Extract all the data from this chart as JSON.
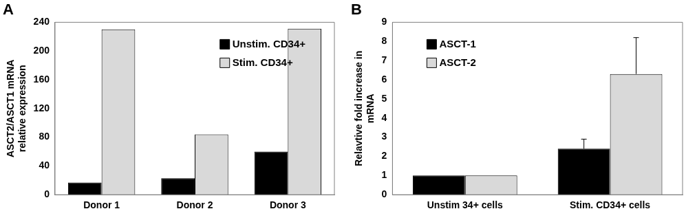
{
  "chart_data": [
    {
      "type": "bar",
      "title": "A",
      "ylabel": "ASCT2/ASCT1 mRNA\nrelative expression",
      "categories": [
        "Donor 1",
        "Donor 2",
        "Donor 3"
      ],
      "series": [
        {
          "name": "Unstim. CD34+",
          "color": "#000000",
          "values": [
            17,
            23,
            60
          ]
        },
        {
          "name": "Stim. CD34+",
          "color": "#d9d9d9",
          "values": [
            230,
            84,
            231
          ]
        }
      ],
      "ylim": [
        0,
        240
      ],
      "yticks": [
        0,
        40,
        80,
        120,
        160,
        200,
        240
      ],
      "grid": false,
      "legend": "top right"
    },
    {
      "type": "bar",
      "title": "B",
      "ylabel": "Relavtive fold increase in\nmRNA",
      "categories": [
        "Unstim 34+ cells",
        "Stim. CD34+ cells"
      ],
      "series": [
        {
          "name": "ASCT-1",
          "color": "#000000",
          "values": [
            1,
            2.4
          ],
          "errors": [
            null,
            [
              2.4,
              2.9
            ]
          ]
        },
        {
          "name": "ASCT-2",
          "color": "#d9d9d9",
          "values": [
            1,
            6.3
          ],
          "errors": [
            null,
            [
              6.3,
              8.2
            ]
          ]
        }
      ],
      "ylim": [
        0,
        9
      ],
      "yticks": [
        0,
        1,
        2,
        3,
        4,
        5,
        6,
        7,
        8,
        9
      ],
      "grid": false,
      "legend": "top left"
    }
  ]
}
